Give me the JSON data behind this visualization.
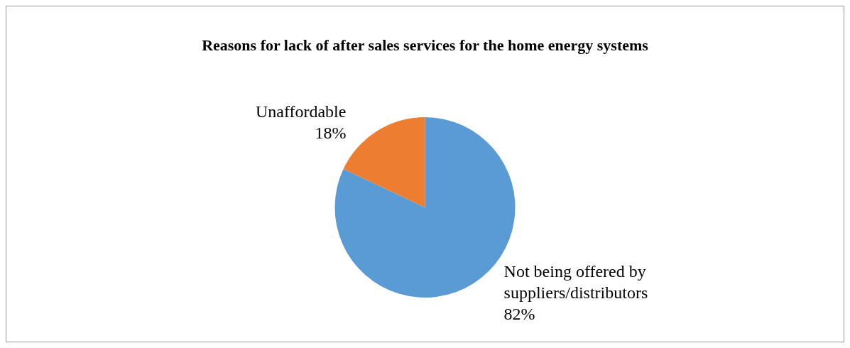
{
  "chart_data": {
    "type": "pie",
    "title": "Reasons for lack of after sales services for the home energy systems",
    "categories": [
      "Not being offered by suppliers/distributors",
      "Unaffordable"
    ],
    "values": [
      82,
      18
    ],
    "value_labels": [
      "82%",
      "18%"
    ],
    "colors": [
      "#5b9bd5",
      "#ed7d31"
    ],
    "legend": false
  }
}
